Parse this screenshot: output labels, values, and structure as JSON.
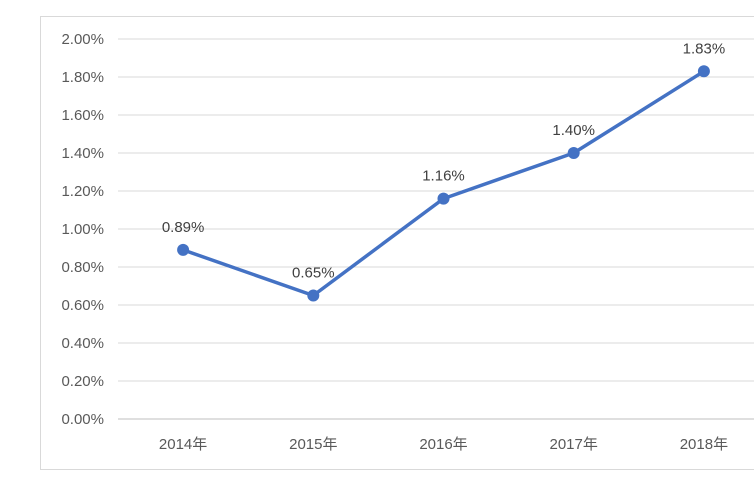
{
  "chart_data": {
    "type": "line",
    "title": "",
    "categories": [
      "2014年",
      "2015年",
      "2016年",
      "2017年",
      "2018年"
    ],
    "values": [
      0.89,
      0.65,
      1.16,
      1.4,
      1.83
    ],
    "data_labels": [
      "0.89%",
      "0.65%",
      "1.16%",
      "1.40%",
      "1.83%"
    ],
    "xlabel": "",
    "ylabel": "",
    "y_axis": {
      "min": 0.0,
      "max": 2.0,
      "step": 0.2,
      "tick_labels": [
        "0.00%",
        "0.20%",
        "0.40%",
        "0.60%",
        "0.80%",
        "1.00%",
        "1.20%",
        "1.40%",
        "1.60%",
        "1.80%",
        "2.00%"
      ]
    },
    "grid": true,
    "legend_position": "none",
    "colors": {
      "line": "#4472C4",
      "marker": "#4472C4",
      "gridline": "#D9D9D9",
      "axis_line": "#BFBFBF",
      "axis_label": "#595959",
      "data_label": "#404040",
      "background": "#FFFFFF",
      "border": "#D9D9D9"
    }
  }
}
